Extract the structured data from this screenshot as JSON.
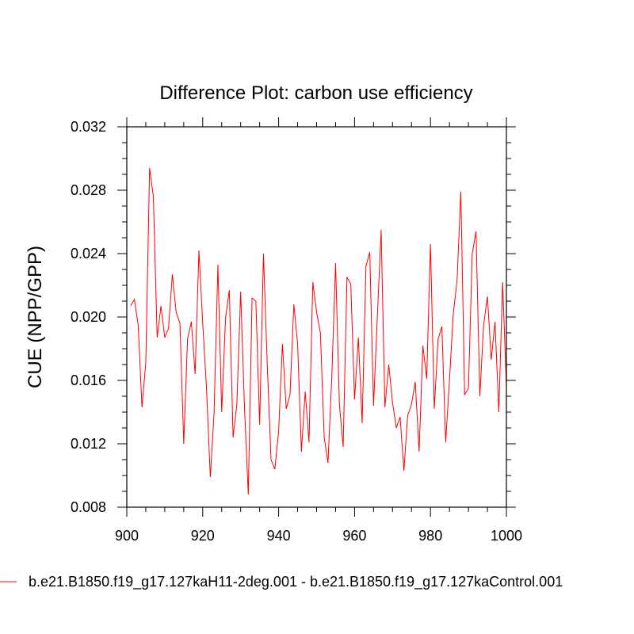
{
  "chart_data": {
    "type": "line",
    "title": "Difference Plot: carbon use efficiency",
    "xlabel": "",
    "ylabel": "CUE  (NPP/GPP)",
    "xlim": [
      900,
      1000
    ],
    "ylim": [
      0.008,
      0.032
    ],
    "x_ticks": [
      "900",
      "920",
      "940",
      "960",
      "980",
      "1000"
    ],
    "y_ticks": [
      "0.008",
      "0.012",
      "0.016",
      "0.020",
      "0.024",
      "0.028",
      "0.032"
    ],
    "line_color": "#ff0000",
    "x_start": 901,
    "series": [
      {
        "name": "b.e21.B1850.f19_g17.127kaH11-2deg.001 - b.e21.B1850.f19_g17.127kaControl.001",
        "values": [
          0.0207,
          0.0211,
          0.0195,
          0.0143,
          0.0171,
          0.0294,
          0.0276,
          0.0187,
          0.0207,
          0.0187,
          0.0193,
          0.0227,
          0.0203,
          0.0196,
          0.012,
          0.0186,
          0.0197,
          0.0164,
          0.0242,
          0.0196,
          0.0155,
          0.0099,
          0.014,
          0.0233,
          0.014,
          0.0199,
          0.0217,
          0.0124,
          0.0145,
          0.0216,
          0.0143,
          0.0088,
          0.0212,
          0.021,
          0.0132,
          0.024,
          0.017,
          0.011,
          0.0104,
          0.0128,
          0.0183,
          0.0142,
          0.0151,
          0.0208,
          0.0183,
          0.0115,
          0.0153,
          0.0121,
          0.0222,
          0.0203,
          0.019,
          0.0124,
          0.0108,
          0.0162,
          0.0234,
          0.0145,
          0.0118,
          0.0225,
          0.0221,
          0.0148,
          0.0187,
          0.0133,
          0.0232,
          0.0241,
          0.0144,
          0.02,
          0.0255,
          0.0143,
          0.017,
          0.0146,
          0.013,
          0.0137,
          0.0103,
          0.0138,
          0.0145,
          0.0159,
          0.0115,
          0.0182,
          0.0161,
          0.0246,
          0.0142,
          0.0186,
          0.0194,
          0.0121,
          0.016,
          0.0202,
          0.0223,
          0.0279,
          0.0151,
          0.0155,
          0.024,
          0.0254,
          0.015,
          0.0195,
          0.0213,
          0.0173,
          0.0197,
          0.014,
          0.0222,
          0.0156
        ]
      }
    ]
  }
}
